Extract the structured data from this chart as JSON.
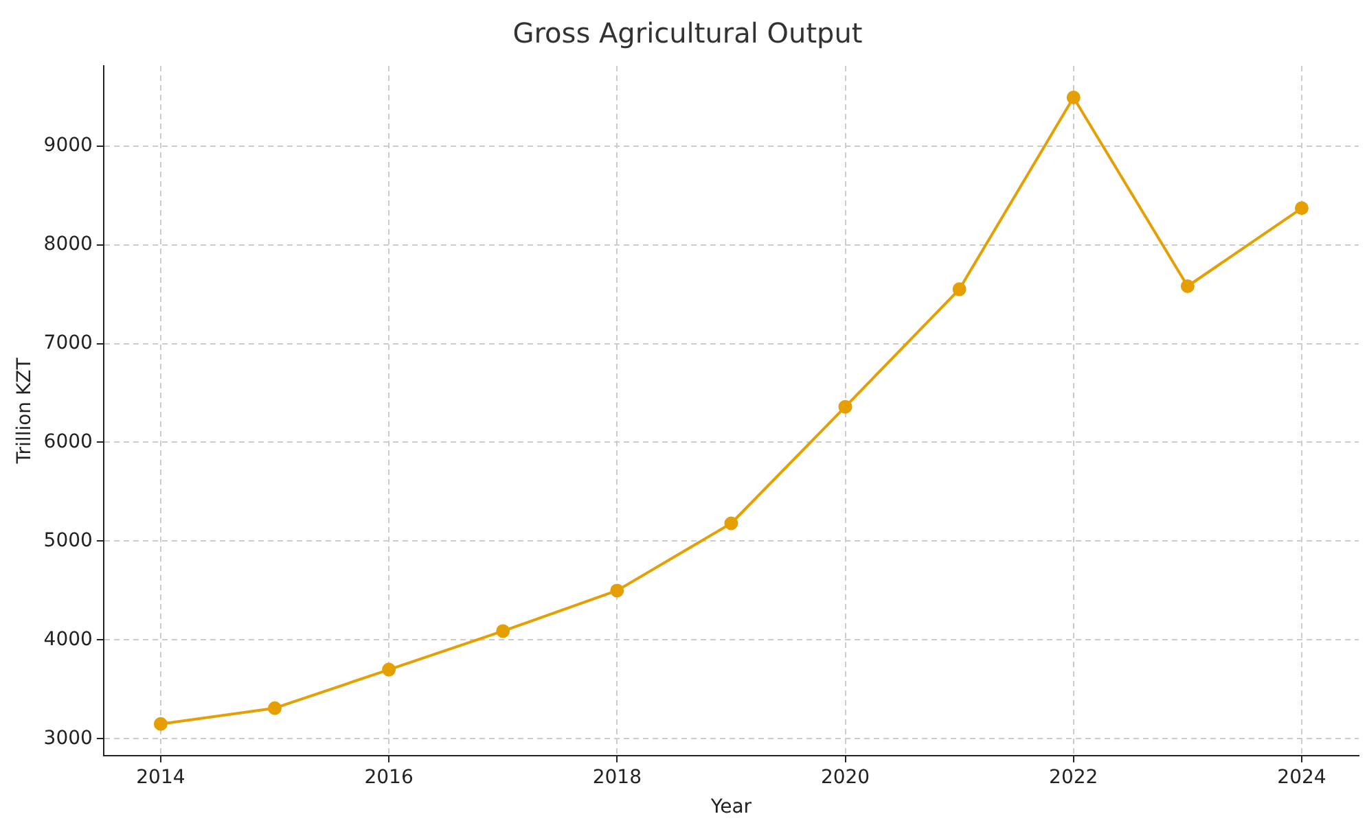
{
  "chart_data": {
    "type": "line",
    "title": "Gross Agricultural Output",
    "xlabel": "Year",
    "ylabel": "Trillion KZT",
    "x": [
      2014,
      2015,
      2016,
      2017,
      2018,
      2019,
      2020,
      2021,
      2022,
      2023,
      2024
    ],
    "series": [
      {
        "color": "#e69f00",
        "values": [
          3150,
          3310,
          3700,
          4090,
          4500,
          5180,
          6360,
          7550,
          9490,
          7580,
          8370
        ]
      }
    ],
    "xlim": [
      2013.5,
      2024.5
    ],
    "xticks": [
      2014,
      2016,
      2018,
      2020,
      2022,
      2024
    ],
    "ylim": [
      2830,
      9810
    ],
    "yticks": [
      3000,
      4000,
      5000,
      6000,
      7000,
      8000,
      9000
    ],
    "grid": true,
    "marker": "circle",
    "line_style": "solid",
    "legend": false
  }
}
